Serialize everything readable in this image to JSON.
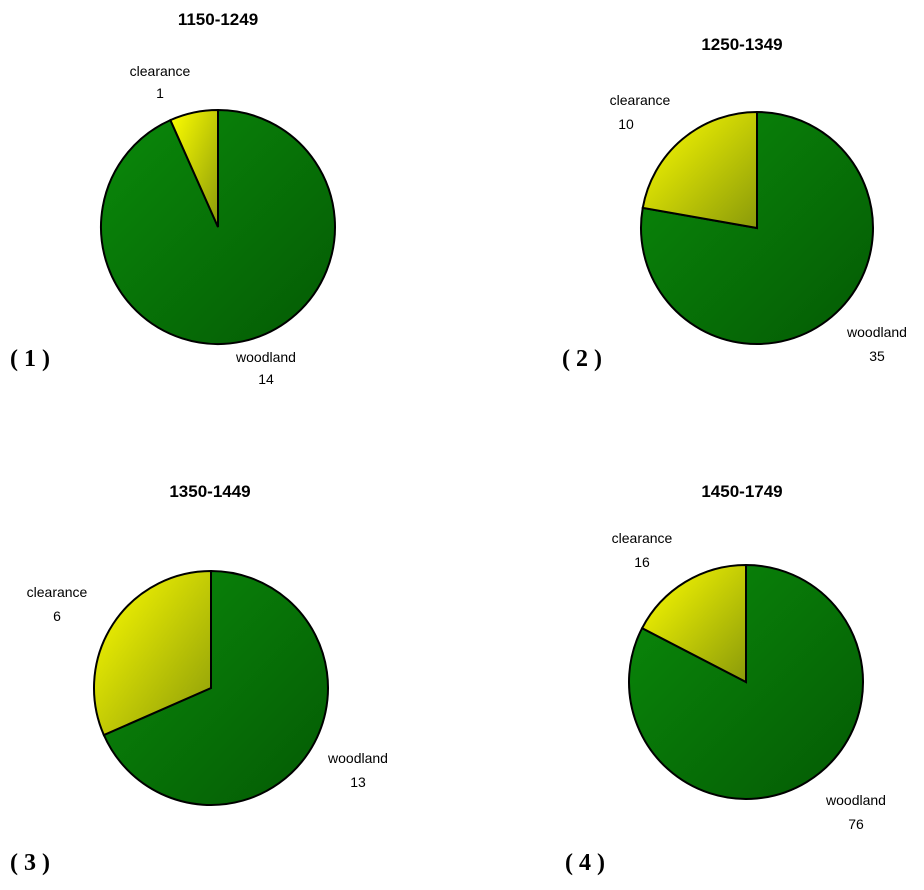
{
  "colors": {
    "woodland_light": "#0a8a0a",
    "woodland_dark": "#045a04",
    "clearance_light": "#ffff00",
    "clearance_dark": "#8a9a0a"
  },
  "chart_data": [
    {
      "type": "pie",
      "title": "1150-1249",
      "panel_label": "( 1 )",
      "categories": [
        "clearance",
        "woodland"
      ],
      "values": [
        1,
        14
      ]
    },
    {
      "type": "pie",
      "title": "1250-1349",
      "panel_label": "( 2 )",
      "categories": [
        "clearance",
        "woodland"
      ],
      "values": [
        10,
        35
      ]
    },
    {
      "type": "pie",
      "title": "1350-1449",
      "panel_label": "( 3 )",
      "categories": [
        "clearance",
        "woodland"
      ],
      "values": [
        6,
        13
      ]
    },
    {
      "type": "pie",
      "title": "1450-1749",
      "panel_label": "( 4 )",
      "categories": [
        "clearance",
        "woodland"
      ],
      "values": [
        16,
        76
      ]
    }
  ]
}
